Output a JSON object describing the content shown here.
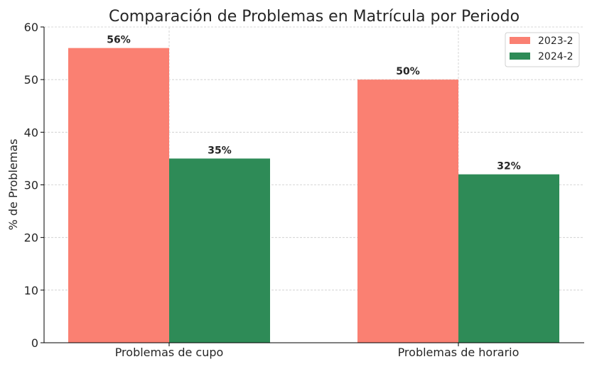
{
  "chart_data": {
    "type": "bar",
    "title": "Comparación de Problemas en Matrícula por Periodo",
    "xlabel": "",
    "ylabel": "% de Problemas",
    "ylim": [
      0,
      60
    ],
    "yticks": [
      0,
      10,
      20,
      30,
      40,
      50,
      60
    ],
    "categories": [
      "Problemas de cupo",
      "Problemas de horario"
    ],
    "series": [
      {
        "name": "2023-2",
        "values": [
          56,
          50
        ],
        "labels": [
          "56%",
          "50%"
        ],
        "color": "#FA8072"
      },
      {
        "name": "2024-2",
        "values": [
          35,
          32
        ],
        "labels": [
          "35%",
          "32%"
        ],
        "color": "#2E8B57"
      }
    ],
    "grid": true,
    "legend": "top-right"
  }
}
